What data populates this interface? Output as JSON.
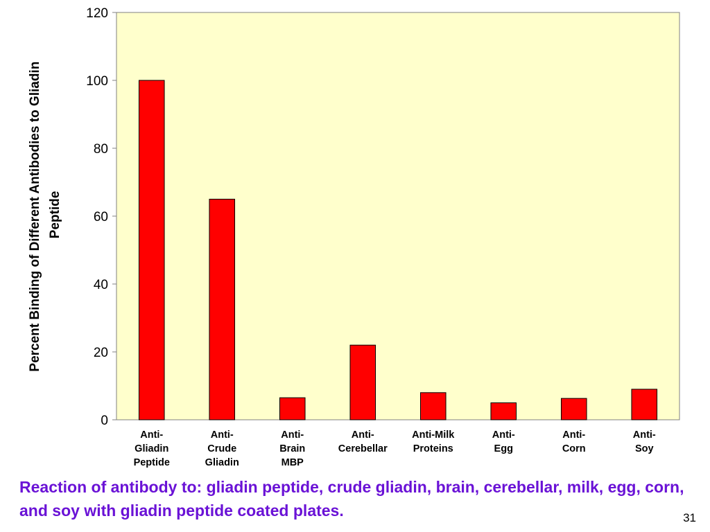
{
  "chart_data": {
    "type": "bar",
    "categories": [
      "Anti-\nGliadin\nPeptide",
      "Anti-\nCrude\nGliadin",
      "Anti-\nBrain\nMBP",
      "Anti-\nCerebellar",
      "Anti-Milk\nProteins",
      "Anti-\nEgg",
      "Anti-\nCorn",
      "Anti-\nSoy"
    ],
    "values": [
      100,
      65,
      6.5,
      22,
      8,
      5,
      6.3,
      9
    ],
    "title": "",
    "xlabel": "",
    "ylabel": "Percent Binding of Different Antibodies to Gliadin\nPeptide",
    "ylim": [
      0,
      120
    ],
    "yticks": [
      0,
      20,
      40,
      60,
      80,
      100,
      120
    ],
    "grid": false,
    "legend": "none",
    "colors": {
      "bar": "#ff0000",
      "plot_background": "#ffffcc",
      "axis": "#808080"
    }
  },
  "caption": "Reaction of antibody to: gliadin peptide, crude gliadin, brain, cerebellar, milk, egg, corn, and soy with gliadin peptide coated plates.",
  "page_number": "31"
}
